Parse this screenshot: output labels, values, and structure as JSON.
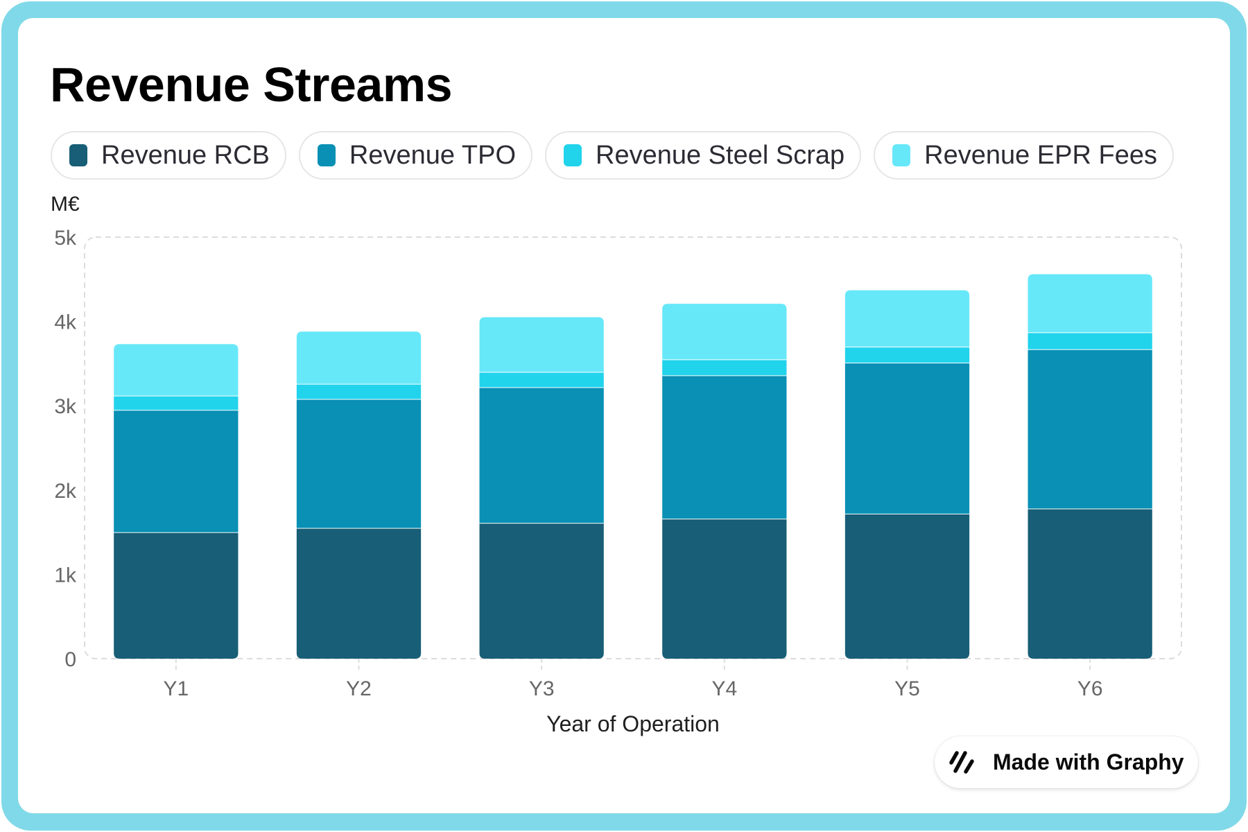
{
  "title": "Revenue Streams",
  "legend": [
    {
      "label": "Revenue RCB",
      "color": "#175e76"
    },
    {
      "label": "Revenue TPO",
      "color": "#0990b4"
    },
    {
      "label": "Revenue Steel Scrap",
      "color": "#22d3ec"
    },
    {
      "label": "Revenue EPR Fees",
      "color": "#67e8f8"
    }
  ],
  "badge": {
    "label": "Made with Graphy",
    "icon": "graphy-logo-icon"
  },
  "frame_color": "#80d9e8",
  "chart_data": {
    "type": "bar",
    "stacked": true,
    "title": "Revenue Streams",
    "xlabel": "Year of Operation",
    "ylabel": "M€",
    "categories": [
      "Y1",
      "Y2",
      "Y3",
      "Y4",
      "Y5",
      "Y6"
    ],
    "ylim": [
      0,
      5000
    ],
    "yticks": [
      0,
      1000,
      2000,
      3000,
      4000,
      5000
    ],
    "ytick_labels": [
      "0",
      "1k",
      "2k",
      "3k",
      "4k",
      "5k"
    ],
    "grid": false,
    "legend_position": "top-left",
    "series": [
      {
        "name": "Revenue RCB",
        "color": "#175e76",
        "values": [
          1500,
          1550,
          1610,
          1660,
          1720,
          1780
        ]
      },
      {
        "name": "Revenue TPO",
        "color": "#0990b4",
        "values": [
          1450,
          1530,
          1610,
          1700,
          1790,
          1890
        ]
      },
      {
        "name": "Revenue Steel Scrap",
        "color": "#22d3ec",
        "values": [
          170,
          180,
          180,
          190,
          190,
          200
        ]
      },
      {
        "name": "Revenue EPR Fees",
        "color": "#67e8f8",
        "values": [
          610,
          620,
          650,
          660,
          670,
          690
        ]
      }
    ]
  }
}
